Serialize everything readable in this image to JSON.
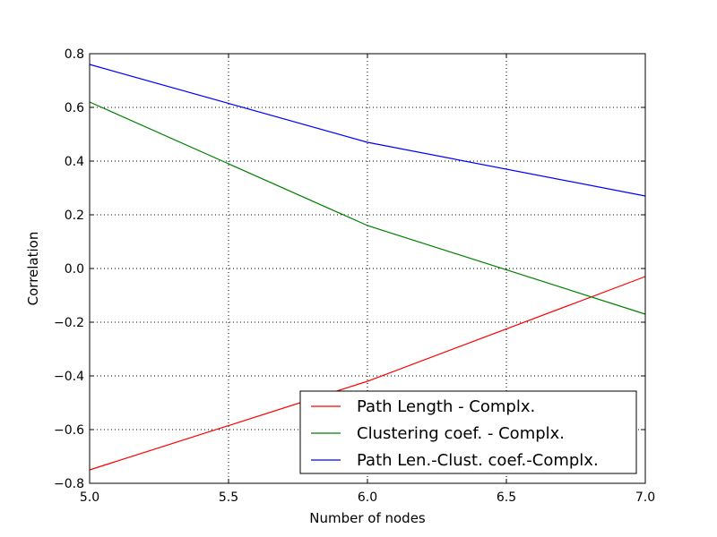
{
  "chart_data": {
    "type": "line",
    "title": "",
    "xlabel": "Number of nodes",
    "ylabel": "Correlation",
    "xlim": [
      5.0,
      7.0
    ],
    "ylim": [
      -0.8,
      0.8
    ],
    "x": [
      5.0,
      6.0,
      7.0
    ],
    "xticks": [
      "5.0",
      "5.5",
      "6.0",
      "6.5",
      "7.0"
    ],
    "yticks": [
      "−0.8",
      "−0.6",
      "−0.4",
      "−0.2",
      "0.0",
      "0.2",
      "0.4",
      "0.6",
      "0.8"
    ],
    "grid": true,
    "legend_position": "lower-right",
    "series": [
      {
        "name": "Path Length - Complx.",
        "color": "#ff0000",
        "values": [
          -0.75,
          -0.42,
          -0.03
        ]
      },
      {
        "name": "Clustering coef. - Complx.",
        "color": "#008000",
        "values": [
          0.62,
          0.16,
          -0.17
        ]
      },
      {
        "name": "Path Len.-Clust. coef.-Complx.",
        "color": "#0000ff",
        "values": [
          0.76,
          0.47,
          0.27
        ]
      }
    ]
  }
}
